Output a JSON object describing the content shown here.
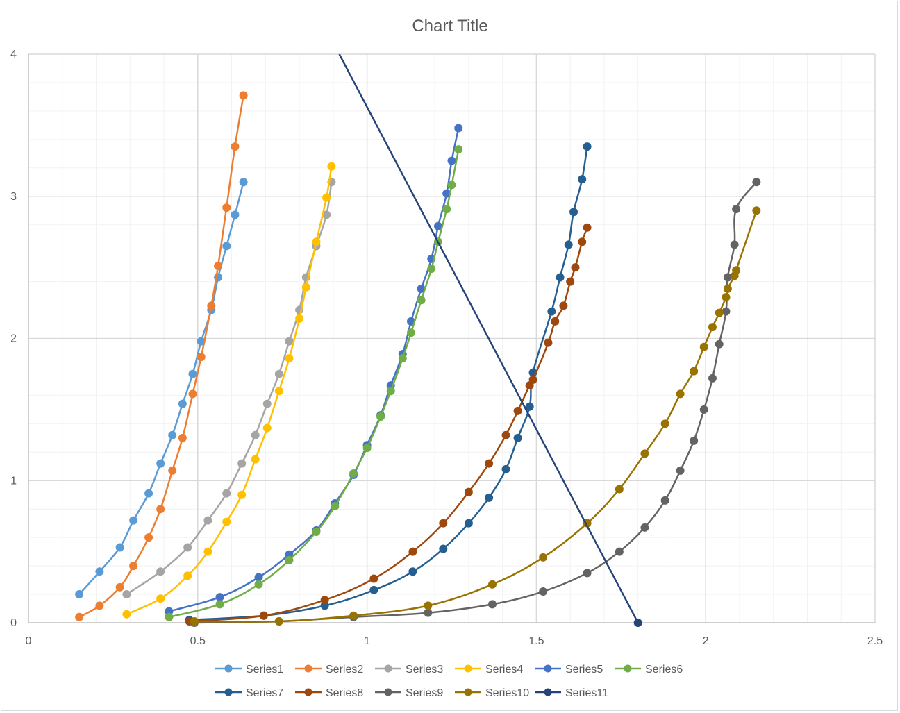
{
  "chart_data": {
    "type": "scatter",
    "title": "Chart Title",
    "xlabel": "",
    "ylabel": "",
    "xlim": [
      0,
      2.5
    ],
    "ylim": [
      0,
      4
    ],
    "x_ticks": [
      "0",
      "0.5",
      "1",
      "1.5",
      "2",
      "2.5"
    ],
    "y_ticks": [
      "0",
      "1",
      "2",
      "3",
      "4"
    ],
    "grid": true,
    "legend_position": "bottom",
    "series": [
      {
        "name": "Series1",
        "color": "#5B9BD5",
        "markers": true,
        "x": [
          0.15,
          0.21,
          0.27,
          0.31,
          0.355,
          0.39,
          0.425,
          0.455,
          0.485,
          0.51,
          0.54,
          0.56,
          0.585,
          0.61,
          0.635
        ],
        "y": [
          0.2,
          0.36,
          0.53,
          0.72,
          0.91,
          1.12,
          1.32,
          1.54,
          1.75,
          1.98,
          2.2,
          2.43,
          2.65,
          2.87,
          3.1
        ]
      },
      {
        "name": "Series2",
        "color": "#ED7D31",
        "markers": true,
        "x": [
          0.15,
          0.21,
          0.27,
          0.31,
          0.355,
          0.39,
          0.425,
          0.455,
          0.485,
          0.51,
          0.54,
          0.56,
          0.585,
          0.61,
          0.635
        ],
        "y": [
          0.04,
          0.12,
          0.25,
          0.4,
          0.6,
          0.8,
          1.07,
          1.3,
          1.61,
          1.87,
          2.23,
          2.51,
          2.92,
          3.35,
          3.71
        ]
      },
      {
        "name": "Series3",
        "color": "#A5A5A5",
        "markers": true,
        "x": [
          0.29,
          0.39,
          0.47,
          0.53,
          0.585,
          0.63,
          0.67,
          0.705,
          0.74,
          0.77,
          0.8,
          0.82,
          0.85,
          0.88,
          0.895
        ],
        "y": [
          0.2,
          0.36,
          0.53,
          0.72,
          0.91,
          1.12,
          1.32,
          1.54,
          1.75,
          1.98,
          2.2,
          2.43,
          2.65,
          2.87,
          3.1
        ]
      },
      {
        "name": "Series4",
        "color": "#FFC000",
        "markers": true,
        "x": [
          0.29,
          0.39,
          0.47,
          0.53,
          0.585,
          0.63,
          0.67,
          0.705,
          0.74,
          0.77,
          0.8,
          0.82,
          0.85,
          0.88,
          0.895
        ],
        "y": [
          0.06,
          0.17,
          0.33,
          0.5,
          0.71,
          0.9,
          1.15,
          1.37,
          1.63,
          1.86,
          2.14,
          2.36,
          2.68,
          2.99,
          3.21
        ]
      },
      {
        "name": "Series5",
        "color": "#4472C4",
        "markers": true,
        "x": [
          0.415,
          0.565,
          0.68,
          0.77,
          0.85,
          0.905,
          0.96,
          1.0,
          1.04,
          1.07,
          1.105,
          1.13,
          1.16,
          1.19,
          1.21,
          1.235,
          1.25,
          1.27
        ],
        "y": [
          0.08,
          0.18,
          0.32,
          0.48,
          0.65,
          0.84,
          1.04,
          1.25,
          1.46,
          1.67,
          1.89,
          2.12,
          2.35,
          2.56,
          2.79,
          3.02,
          3.25,
          3.48
        ]
      },
      {
        "name": "Series6",
        "color": "#70AD47",
        "markers": true,
        "x": [
          0.415,
          0.565,
          0.68,
          0.77,
          0.85,
          0.905,
          0.96,
          1.0,
          1.04,
          1.07,
          1.105,
          1.13,
          1.16,
          1.19,
          1.21,
          1.235,
          1.25,
          1.27
        ],
        "y": [
          0.04,
          0.13,
          0.27,
          0.44,
          0.64,
          0.82,
          1.05,
          1.23,
          1.45,
          1.63,
          1.86,
          2.04,
          2.27,
          2.49,
          2.68,
          2.91,
          3.08,
          3.33
        ]
      },
      {
        "name": "Series7",
        "color": "#255E91",
        "markers": true,
        "x": [
          0.475,
          0.695,
          0.875,
          1.02,
          1.135,
          1.225,
          1.3,
          1.36,
          1.41,
          1.445,
          1.48,
          1.49,
          1.545,
          1.57,
          1.595,
          1.61,
          1.635,
          1.65
        ],
        "y": [
          0.02,
          0.05,
          0.12,
          0.23,
          0.36,
          0.52,
          0.7,
          0.88,
          1.08,
          1.3,
          1.52,
          1.76,
          2.19,
          2.43,
          2.66,
          2.89,
          3.12,
          3.35
        ]
      },
      {
        "name": "Series8",
        "color": "#9E480E",
        "markers": true,
        "x": [
          0.475,
          0.695,
          0.875,
          1.02,
          1.135,
          1.225,
          1.3,
          1.36,
          1.41,
          1.445,
          1.48,
          1.49,
          1.535,
          1.555,
          1.58,
          1.6,
          1.615,
          1.635,
          1.65
        ],
        "y": [
          0.01,
          0.05,
          0.16,
          0.31,
          0.5,
          0.7,
          0.92,
          1.12,
          1.32,
          1.49,
          1.67,
          1.71,
          1.97,
          2.12,
          2.23,
          2.4,
          2.5,
          2.68,
          2.78
        ]
      },
      {
        "name": "Series9",
        "color": "#636363",
        "markers": true,
        "x": [
          0.49,
          0.74,
          0.96,
          1.18,
          1.37,
          1.52,
          1.65,
          1.745,
          1.82,
          1.88,
          1.925,
          1.965,
          1.995,
          2.02,
          2.04,
          2.06,
          2.065,
          2.085,
          2.09,
          2.15
        ],
        "y": [
          0.0,
          0.01,
          0.04,
          0.07,
          0.13,
          0.22,
          0.35,
          0.5,
          0.67,
          0.86,
          1.07,
          1.28,
          1.5,
          1.72,
          1.96,
          2.19,
          2.43,
          2.66,
          2.91,
          3.1
        ]
      },
      {
        "name": "Series10",
        "color": "#997300",
        "markers": true,
        "x": [
          0.49,
          0.74,
          0.96,
          1.18,
          1.37,
          1.52,
          1.65,
          1.745,
          1.82,
          1.88,
          1.925,
          1.965,
          1.995,
          2.02,
          2.04,
          2.06,
          2.065,
          2.085,
          2.09,
          2.15
        ],
        "y": [
          0.01,
          0.01,
          0.05,
          0.12,
          0.27,
          0.46,
          0.7,
          0.94,
          1.19,
          1.4,
          1.61,
          1.77,
          1.94,
          2.08,
          2.18,
          2.29,
          2.35,
          2.44,
          2.48,
          2.9
        ]
      },
      {
        "name": "Series11",
        "color": "#264478",
        "markers": true,
        "x": [
          0.918,
          1.8
        ],
        "y": [
          4.0,
          0.0
        ],
        "marked_points": [
          [
            1.8,
            0.0
          ]
        ]
      }
    ]
  }
}
